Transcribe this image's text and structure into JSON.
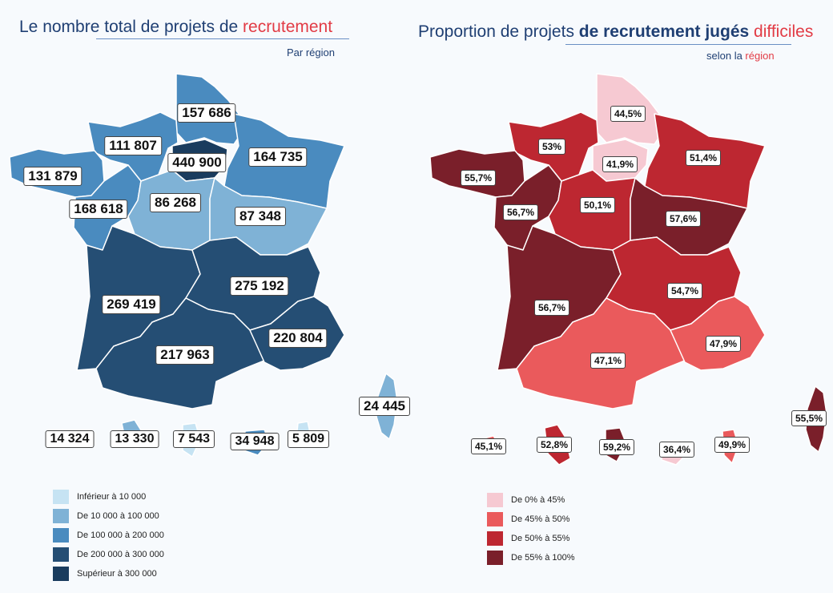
{
  "left": {
    "title_parts": [
      "Le nombre total de projets de ",
      "recrutement"
    ],
    "subtitle": "Par région",
    "labels": {
      "hdf": "157 686",
      "normandie": "111 807",
      "idf": "440 900",
      "grand_est": "164 735",
      "bretagne": "131 879",
      "pays_loire": "168 618",
      "centre": "86 268",
      "bourgogne": "87 348",
      "nouvelle_aquitaine": "269 419",
      "auvergne_ra": "275 192",
      "occitanie": "217 963",
      "paca": "220 804",
      "corse": "24 445",
      "guadeloupe": "14 324",
      "martinique": "13 330",
      "guyane": "7 543",
      "reunion": "34 948",
      "mayotte": "5 809"
    },
    "legend": [
      {
        "label": "Inférieur à 10 000",
        "color": "#c6e3f3"
      },
      {
        "label": "De 10 000 à 100 000",
        "color": "#7fb2d6"
      },
      {
        "label": "De 100 000 à 200 000",
        "color": "#4a8bbf"
      },
      {
        "label": "De 200 000 à 300 000",
        "color": "#254e74"
      },
      {
        "label": "Supérieur à 300 000",
        "color": "#1a3c5e"
      }
    ]
  },
  "right": {
    "title_parts": [
      "Proportion de projets ",
      "de recrutement jugés ",
      "difficiles"
    ],
    "subtitle_parts": [
      "selon la ",
      "région"
    ],
    "labels": {
      "hdf": "44,5%",
      "normandie": "53%",
      "idf": "41,9%",
      "grand_est": "51,4%",
      "bretagne": "55,7%",
      "pays_loire": "56,7%",
      "centre": "50,1%",
      "bourgogne": "57,6%",
      "nouvelle_aquitaine": "56,7%",
      "auvergne_ra": "54,7%",
      "occitanie": "47,1%",
      "paca": "47,9%",
      "corse": "55,5%",
      "guadeloupe": "45,1%",
      "martinique": "52,8%",
      "guyane": "59,2%",
      "reunion": "36,4%",
      "mayotte": "49,9%"
    },
    "legend": [
      {
        "label": "De 0% à 45%",
        "color": "#f6c9d2"
      },
      {
        "label": "De 45% à 50%",
        "color": "#ea5a5c"
      },
      {
        "label": "De 50% à 55%",
        "color": "#bd2731"
      },
      {
        "label": "De 55% à 100%",
        "color": "#7a1f2a"
      }
    ]
  }
}
